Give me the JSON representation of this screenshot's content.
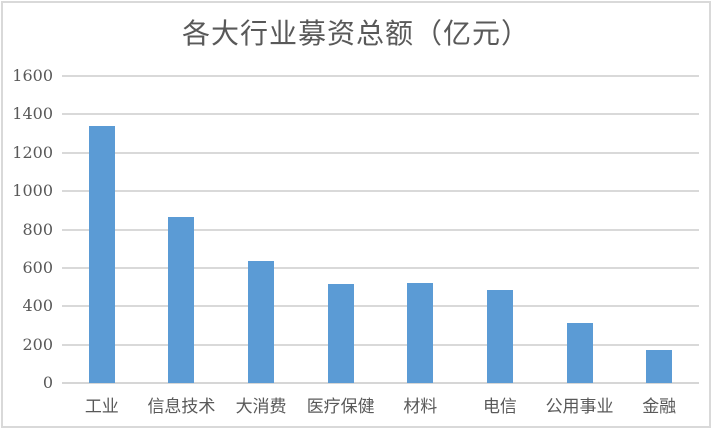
{
  "chart_data": {
    "type": "bar",
    "title": "各大行业募资总额（亿元）",
    "categories": [
      "工业",
      "信息技术",
      "大消费",
      "医疗保健",
      "材料",
      "电信",
      "公用事业",
      "金融"
    ],
    "values": [
      1340,
      865,
      635,
      515,
      520,
      485,
      315,
      170
    ],
    "xlabel": "",
    "ylabel": "",
    "ylim": [
      0,
      1600
    ],
    "ytick_interval": 200,
    "yticks": [
      1600,
      1400,
      1200,
      1000,
      800,
      600,
      400,
      200,
      0
    ],
    "grid": "horizontal",
    "legend_position": "none",
    "colors": {
      "bar_fill": "#5B9BD5",
      "gridline": "#D9D9D9",
      "frame_border": "#D9D9D9",
      "title_text": "#595959",
      "axis_text": "#595959",
      "background": "#ffffff"
    }
  }
}
